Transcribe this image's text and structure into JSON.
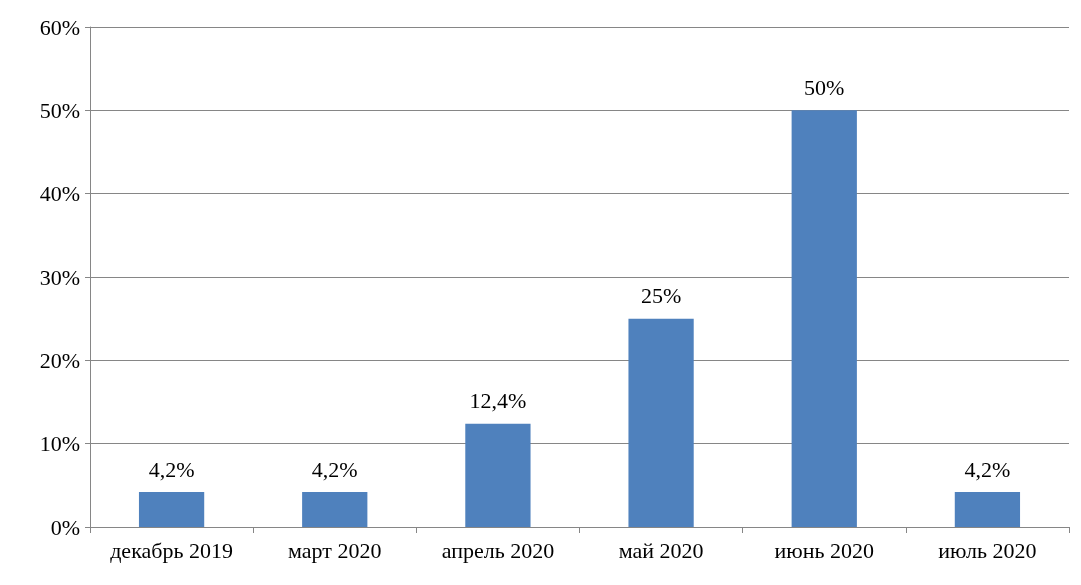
{
  "chart_data": {
    "type": "bar",
    "categories": [
      "декабрь 2019",
      "март 2020",
      "апрель 2020",
      "май 2020",
      "июнь 2020",
      "июль 2020"
    ],
    "values": [
      4.2,
      4.2,
      12.4,
      25,
      50,
      4.2
    ],
    "value_labels": [
      "4,2%",
      "4,2%",
      "12,4%",
      "25%",
      "50%",
      "4,2%"
    ],
    "color": "#4f81bd",
    "ylim": [
      0,
      60
    ],
    "yticks": [
      {
        "value": 0,
        "label": "0%"
      },
      {
        "value": 10,
        "label": "10%"
      },
      {
        "value": 20,
        "label": "20%"
      },
      {
        "value": 30,
        "label": "30%"
      },
      {
        "value": 40,
        "label": "40%"
      },
      {
        "value": 50,
        "label": "50%"
      },
      {
        "value": 60,
        "label": "60%"
      }
    ],
    "grid": "y"
  }
}
